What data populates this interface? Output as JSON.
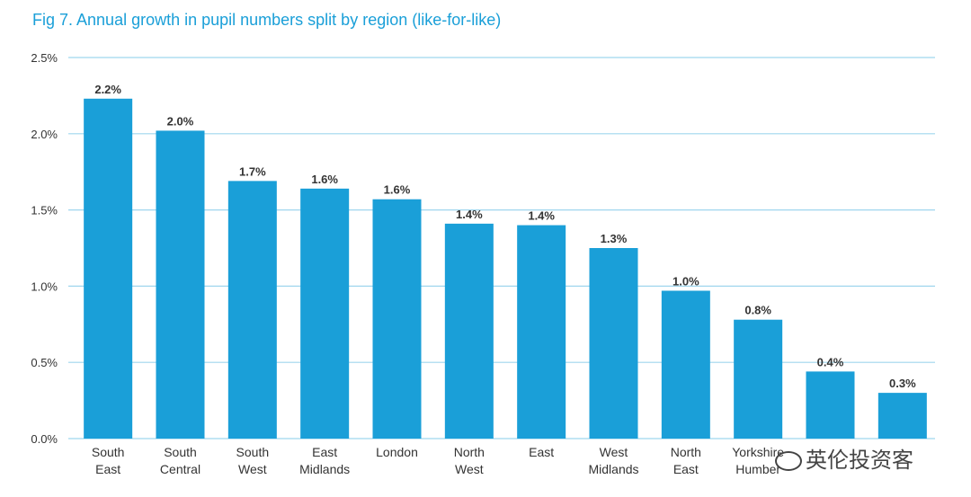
{
  "chart_data": {
    "type": "bar",
    "title": "Fig 7. Annual growth in pupil numbers split by region (like-for-like)",
    "xlabel": "",
    "ylabel": "",
    "categories": [
      [
        "South",
        "East"
      ],
      [
        "South",
        "Central"
      ],
      [
        "South",
        "West"
      ],
      [
        "East",
        "Midlands"
      ],
      [
        "London"
      ],
      [
        "North",
        "West"
      ],
      [
        "East"
      ],
      [
        "West",
        "Midlands"
      ],
      [
        "North",
        "East"
      ],
      [
        "Yorkshire",
        "Humber"
      ],
      [
        ""
      ],
      [
        ""
      ]
    ],
    "values": [
      2.23,
      2.02,
      1.69,
      1.64,
      1.57,
      1.41,
      1.4,
      1.25,
      0.97,
      0.78,
      0.44,
      0.3
    ],
    "data_labels": [
      "2.2%",
      "2.0%",
      "1.7%",
      "1.6%",
      "1.6%",
      "1.4%",
      "1.4%",
      "1.3%",
      "1.0%",
      "0.8%",
      "0.4%",
      "0.3%"
    ],
    "ylim": [
      0,
      2.5
    ],
    "yticks": [
      0.0,
      0.5,
      1.0,
      1.5,
      2.0,
      2.5
    ],
    "ytick_labels": [
      "0.0%",
      "0.5%",
      "1.0%",
      "1.5%",
      "2.0%",
      "2.5%"
    ],
    "grid": true,
    "colors": {
      "bar": "#1a9fd8",
      "grid": "#9fd6ee",
      "title": "#1a9fd8",
      "text": "#333333"
    }
  },
  "watermark": {
    "text": "英伦投资客",
    "icon": "wechat-icon"
  }
}
